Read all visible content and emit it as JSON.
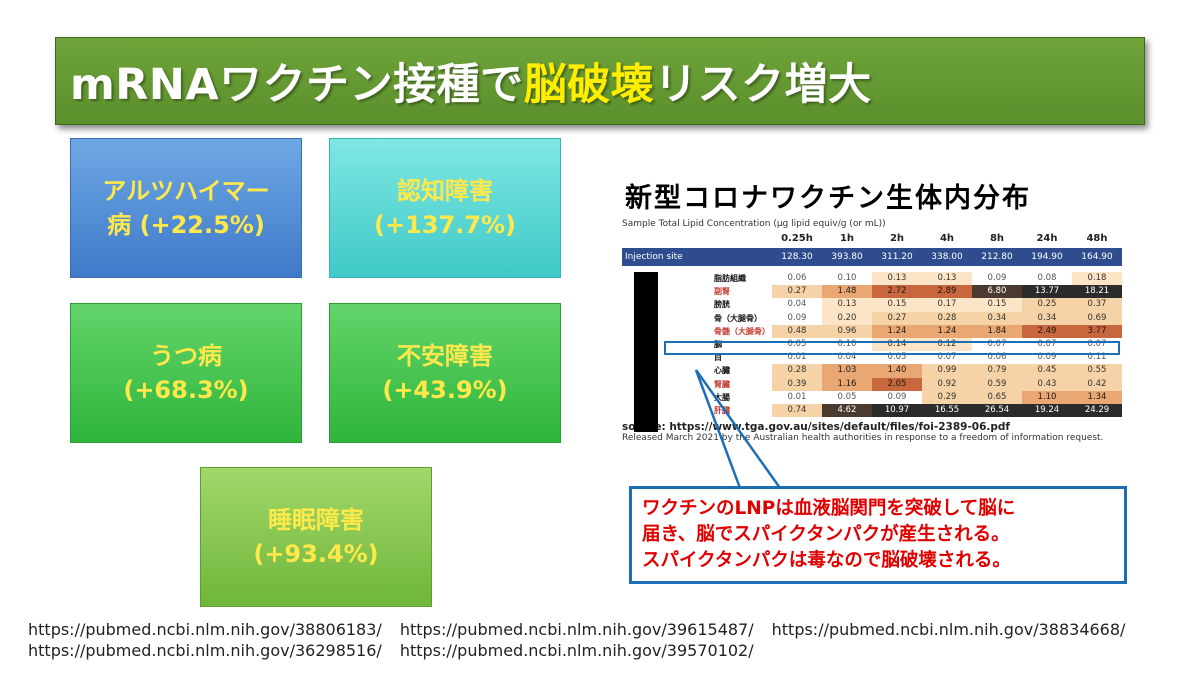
{
  "title": {
    "part1": "mRNAワクチン接種で",
    "highlight": "脳破壊",
    "part2": "リスク増大"
  },
  "conditions": [
    {
      "name_line1": "アルツハイマー",
      "name_line2": "病 (+22.5%)",
      "pct": ""
    },
    {
      "name_line1": "認知障害",
      "name_line2": "",
      "pct": "(+137.7%)"
    },
    {
      "name_line1": "うつ病",
      "name_line2": "",
      "pct": "(+68.3%)"
    },
    {
      "name_line1": "不安障害",
      "name_line2": "",
      "pct": "(+43.9%)"
    },
    {
      "name_line1": "睡眠障害",
      "name_line2": "",
      "pct": "(+93.4%)"
    }
  ],
  "figure": {
    "title": "新型コロナワクチン生体内分布",
    "caption": "Sample Total Lipid Concentration (µg lipid equiv/g (or mL))",
    "columns": [
      "0.25h",
      "1h",
      "2h",
      "4h",
      "8h",
      "24h",
      "48h"
    ],
    "injection_row": {
      "label": "Injection site",
      "values": [
        "128.30",
        "393.80",
        "311.20",
        "338.00",
        "212.80",
        "194.90",
        "164.90"
      ]
    },
    "rows": [
      {
        "label": "脂肪組織",
        "values": [
          "0.06",
          "0.10",
          "0.13",
          "0.13",
          "0.09",
          "0.08",
          "0.18"
        ]
      },
      {
        "label": "副腎",
        "values": [
          "0.27",
          "1.48",
          "2.72",
          "2.89",
          "6.80",
          "13.77",
          "18.21"
        ]
      },
      {
        "label": "膀胱",
        "values": [
          "0.04",
          "0.13",
          "0.15",
          "0.17",
          "0.15",
          "0.25",
          "0.37"
        ]
      },
      {
        "label": "骨（大腿骨）",
        "values": [
          "0.09",
          "0.20",
          "0.27",
          "0.28",
          "0.34",
          "0.34",
          "0.69"
        ]
      },
      {
        "label": "骨髄（大腿骨）",
        "values": [
          "0.48",
          "0.96",
          "1.24",
          "1.24",
          "1.84",
          "2.49",
          "3.77"
        ]
      },
      {
        "label": "脳",
        "values": [
          "0.05",
          "0.10",
          "0.14",
          "0.12",
          "0.07",
          "0.07",
          "0.07"
        ]
      },
      {
        "label": "目",
        "values": [
          "0.01",
          "0.04",
          "0.05",
          "0.07",
          "0.06",
          "0.09",
          "0.11"
        ]
      },
      {
        "label": "心臓",
        "values": [
          "0.28",
          "1.03",
          "1.40",
          "0.99",
          "0.79",
          "0.45",
          "0.55"
        ]
      },
      {
        "label": "腎臓",
        "values": [
          "0.39",
          "1.16",
          "2.05",
          "0.92",
          "0.59",
          "0.43",
          "0.42"
        ]
      },
      {
        "label": "大腸",
        "values": [
          "0.01",
          "0.05",
          "0.09",
          "0.29",
          "0.65",
          "1.10",
          "1.34"
        ]
      },
      {
        "label": "肝臓",
        "values": [
          "0.74",
          "4.62",
          "10.97",
          "16.55",
          "26.54",
          "19.24",
          "24.29"
        ]
      }
    ],
    "source": "source: https://www.tga.gov.au/sites/default/files/foi-2389-06.pdf",
    "released": "Released March 2021 by the Australian health authorities in response to a freedom of information request."
  },
  "callout": {
    "line1": "ワクチンのLNPは血液脳関門を突破して脳に",
    "line2": "届き、脳でスパイクタンパクが産生される。",
    "line3": "スパイクタンパクは毒なので脳破壊される。"
  },
  "urls": {
    "u1": "https://pubmed.ncbi.nlm.nih.gov/38806183/",
    "u2": "https://pubmed.ncbi.nlm.nih.gov/39615487/",
    "u3": "https://pubmed.ncbi.nlm.nih.gov/38834668/",
    "u4": "https://pubmed.ncbi.nlm.nih.gov/36298516/",
    "u5": "https://pubmed.ncbi.nlm.nih.gov/39570102/"
  },
  "colors": {
    "banner": "#5b8f2b",
    "highlight_text": "#ffee00",
    "box_text": "#ffe94a",
    "callout_text": "#e00000",
    "callout_border": "#1c6fb7",
    "injection_bar": "#2f4d8e"
  }
}
